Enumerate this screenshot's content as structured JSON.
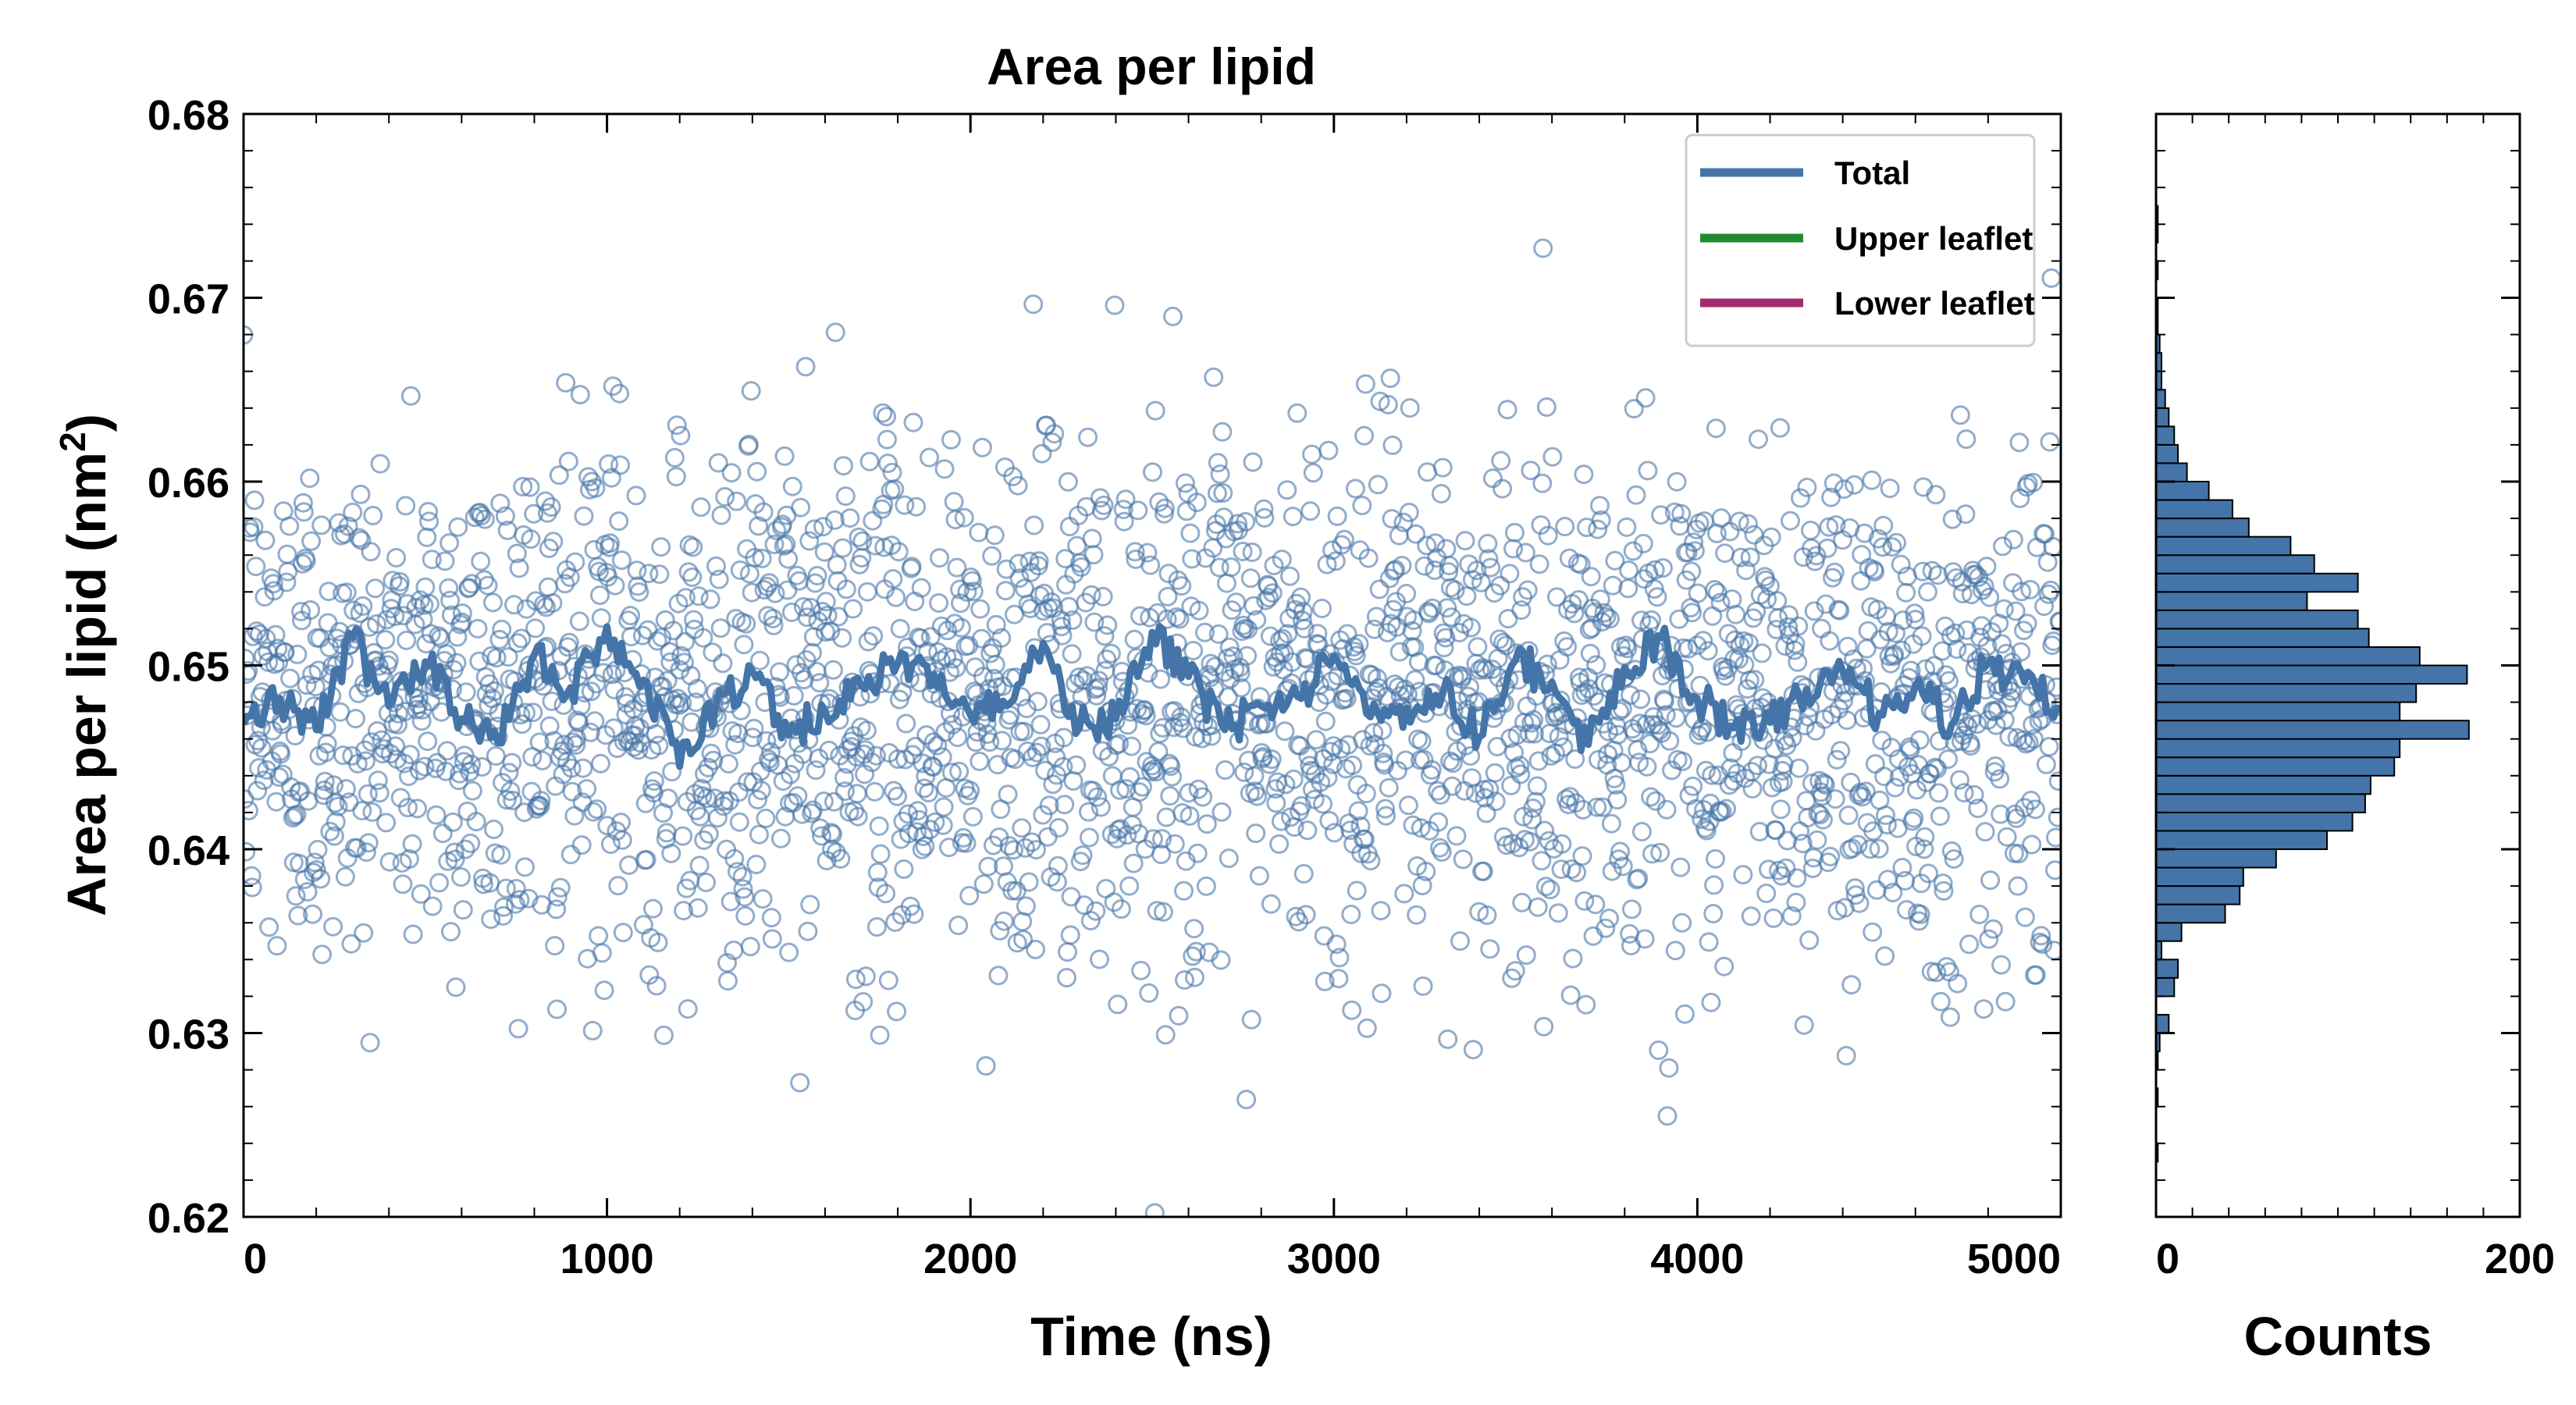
{
  "chart_data": [
    {
      "type": "scatter",
      "title": "Area per lipid",
      "xlabel": "Time (ns)",
      "ylabel": "Area per lipid (nm",
      "ylabel_sup": "2",
      "ylabel_close": ")",
      "xlim": [
        0,
        5000
      ],
      "ylim": [
        0.62,
        0.68
      ],
      "xticks": [
        0,
        1000,
        2000,
        3000,
        4000,
        5000
      ],
      "yticks": [
        0.62,
        0.63,
        0.64,
        0.65,
        0.66,
        0.67,
        0.68
      ],
      "ytick_labels": [
        "0.62",
        "0.63",
        "0.64",
        "0.65",
        "0.66",
        "0.67",
        "0.68"
      ],
      "grid": false,
      "legend_position": "top-right",
      "scatter_color": "#4a76a8",
      "n_points": 2500,
      "mean": 0.648,
      "std": 0.0072,
      "series": [
        {
          "name": "Total",
          "color": "#4575a8"
        },
        {
          "name": "Upper leaflet",
          "color": "#238b2e"
        },
        {
          "name": "Lower leaflet",
          "color": "#a32a6e"
        }
      ],
      "running_average": {
        "series": "Total",
        "x": [
          0,
          100,
          200,
          300,
          400,
          500,
          600,
          700,
          800,
          900,
          1000,
          1100,
          1200,
          1300,
          1400,
          1500,
          1600,
          1700,
          1800,
          1900,
          2000,
          2100,
          2200,
          2300,
          2400,
          2500,
          2600,
          2700,
          2800,
          2900,
          3000,
          3100,
          3200,
          3300,
          3400,
          3500,
          3600,
          3700,
          3800,
          3900,
          4000,
          4100,
          4200,
          4300,
          4400,
          4500,
          4600,
          4700,
          4800,
          4900,
          5000
        ],
        "y": [
          0.6468,
          0.6482,
          0.6465,
          0.6515,
          0.6478,
          0.6502,
          0.6471,
          0.6458,
          0.6506,
          0.6488,
          0.6521,
          0.6492,
          0.6445,
          0.6479,
          0.6497,
          0.6462,
          0.6475,
          0.6489,
          0.6501,
          0.6495,
          0.6473,
          0.6478,
          0.6512,
          0.6466,
          0.6471,
          0.6518,
          0.6494,
          0.6465,
          0.6478,
          0.6483,
          0.6505,
          0.6472,
          0.6477,
          0.6485,
          0.6461,
          0.6503,
          0.6491,
          0.6457,
          0.6499,
          0.6515,
          0.6482,
          0.6466,
          0.6469,
          0.6487,
          0.6497,
          0.6474,
          0.6489,
          0.6468,
          0.6501,
          0.6491,
          0.6476
        ]
      }
    },
    {
      "type": "bar",
      "orientation": "horizontal",
      "xlabel": "Counts",
      "xlim": [
        0,
        200
      ],
      "xticks": [
        0,
        200
      ],
      "ylim": [
        0.62,
        0.68
      ],
      "bar_color": "#4575a8",
      "bin_width": 0.001,
      "bins": [
        0.6235,
        0.6245,
        0.6255,
        0.6265,
        0.6275,
        0.6285,
        0.6295,
        0.6305,
        0.6315,
        0.6325,
        0.6335,
        0.6345,
        0.6355,
        0.6365,
        0.6375,
        0.6385,
        0.6395,
        0.6405,
        0.6415,
        0.6425,
        0.6435,
        0.6445,
        0.6455,
        0.6465,
        0.6475,
        0.6485,
        0.6495,
        0.6505,
        0.6515,
        0.6525,
        0.6535,
        0.6545,
        0.6555,
        0.6565,
        0.6575,
        0.6585,
        0.6595,
        0.6605,
        0.6615,
        0.6625,
        0.6635,
        0.6645,
        0.6655,
        0.6665,
        0.6675,
        0.6685,
        0.6695,
        0.6705,
        0.6715,
        0.6725,
        0.6735,
        0.6745
      ],
      "counts": [
        1,
        0,
        0,
        1,
        0,
        1,
        2,
        7,
        0,
        10,
        12,
        3,
        14,
        38,
        46,
        48,
        66,
        94,
        108,
        115,
        118,
        131,
        134,
        172,
        134,
        143,
        171,
        145,
        117,
        111,
        83,
        111,
        87,
        74,
        51,
        42,
        29,
        17,
        12,
        10,
        7,
        5,
        3,
        3,
        2,
        1,
        1,
        0,
        1,
        0,
        1,
        1
      ]
    }
  ]
}
